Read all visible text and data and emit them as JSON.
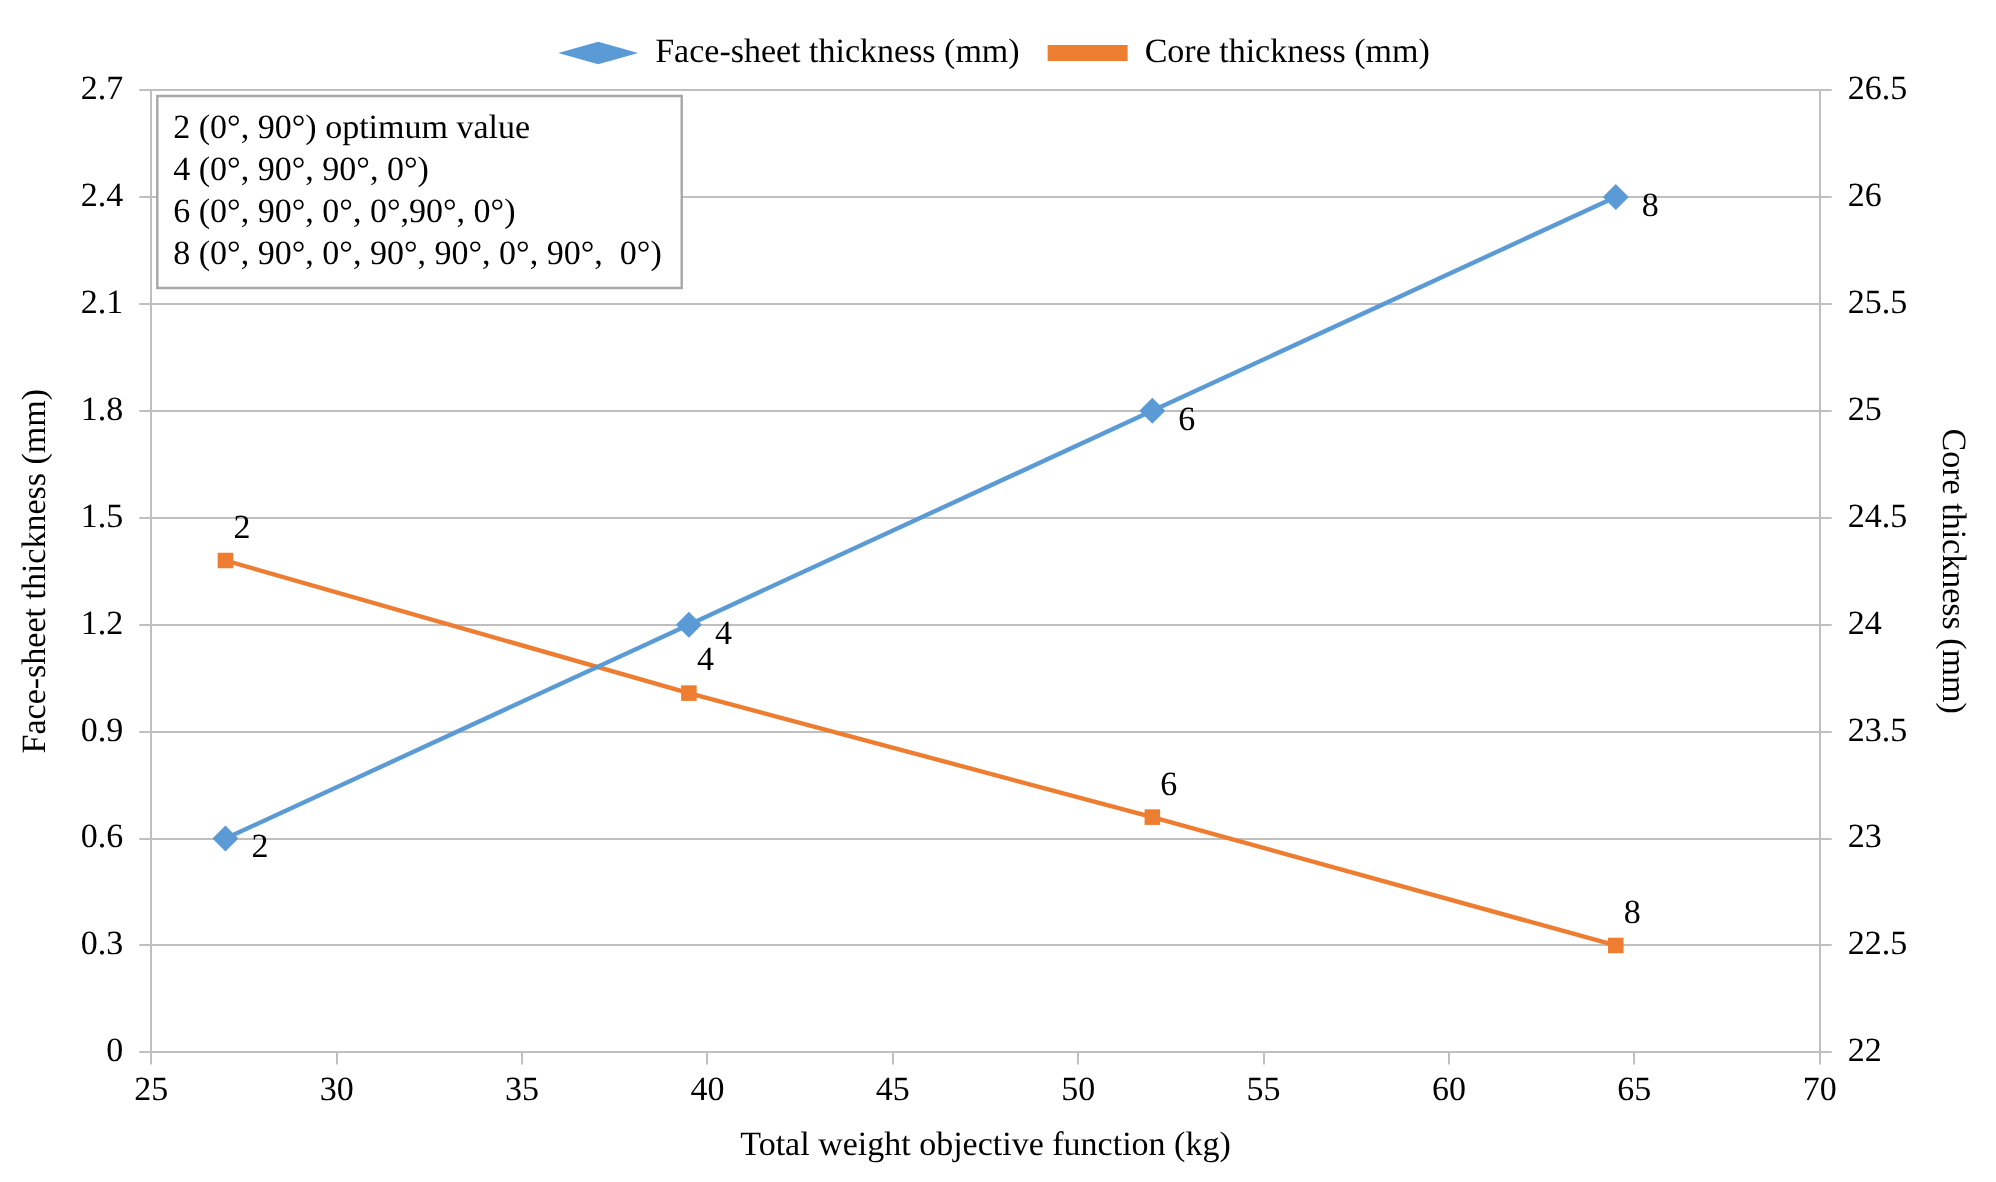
{
  "chart_data": {
    "type": "line",
    "xlabel": "Total weight objective function (kg)",
    "ylabel": "Face-sheet thickness (mm)",
    "y2label": "Core thickness (mm)",
    "xlim": [
      25,
      70
    ],
    "xticks": [
      25,
      30,
      35,
      40,
      45,
      50,
      55,
      60,
      65,
      70
    ],
    "ylim": [
      0,
      2.7
    ],
    "yticks": [
      0,
      0.3,
      0.6,
      0.9,
      1.2,
      1.5,
      1.8,
      2.1,
      2.4,
      2.7
    ],
    "y2lim": [
      22,
      26.5
    ],
    "y2ticks": [
      22,
      22.5,
      23,
      23.5,
      24,
      24.5,
      25,
      25.5,
      26,
      26.5
    ],
    "grid": "y",
    "legend": "top",
    "line_style": "solid",
    "annotations": [
      "2 (0°, 90°) optimum value",
      "4 (0°, 90°, 90°, 0°)",
      "6 (0°, 90°, 0°, 0°,90°, 0°)",
      "8 (0°, 90°, 0°, 90°, 90°, 0°, 90°,  0°)",
      {
        "text": "2",
        "x": 27.0,
        "y": 0.6
      },
      {
        "text": "4",
        "x": 39.5,
        "y": 1.2
      },
      {
        "text": "6",
        "x": 52.0,
        "y": 1.8
      },
      {
        "text": "8",
        "x": 64.5,
        "y": 2.4
      },
      {
        "text": "2",
        "x": 27.0,
        "y": 1.38
      },
      {
        "text": "4",
        "x": 39.5,
        "y": 1.01
      },
      {
        "text": "6",
        "x": 52.0,
        "y": 0.66
      },
      {
        "text": "8",
        "x": 64.5,
        "y": 0.3
      }
    ],
    "series": [
      {
        "name": "Face-sheet thickness (mm)",
        "color": "#5b9bd5",
        "marker": "diamond",
        "x": [
          27.0,
          39.5,
          52.0,
          64.5
        ],
        "values": [
          0.6,
          1.2,
          1.8,
          2.4
        ]
      },
      {
        "name": "Core thickness (mm)",
        "color": "#ed7d31",
        "marker": "square",
        "axis": "y2",
        "x": [
          27.0,
          39.5,
          52.0,
          64.5
        ],
        "values": [
          24.3,
          23.68,
          23.1,
          22.5
        ]
      }
    ]
  }
}
